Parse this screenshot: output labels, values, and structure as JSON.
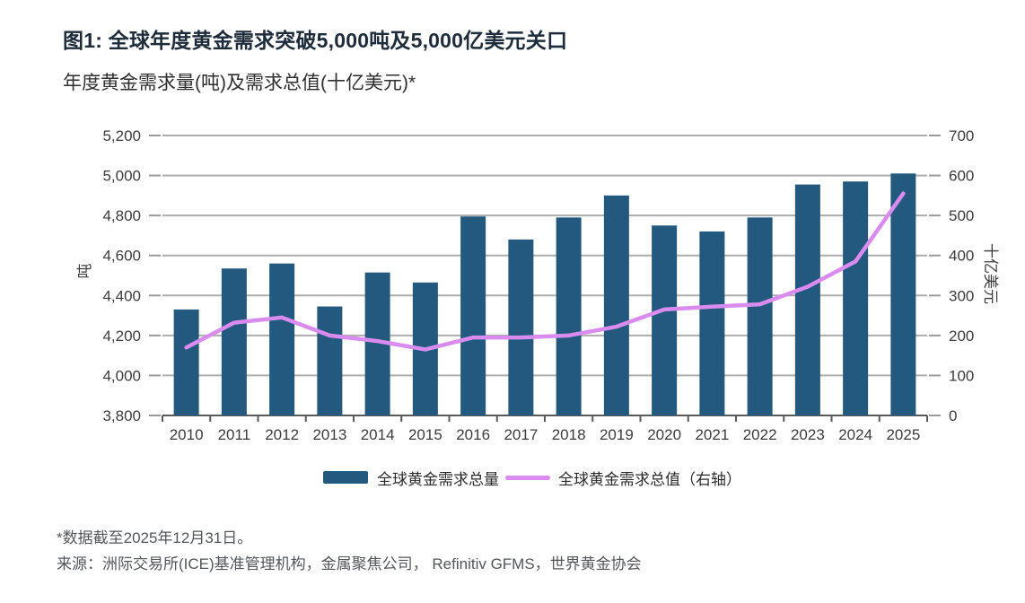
{
  "header": {
    "title": "图1: 全球年度黄金需求突破5,000吨及5,000亿美元关口",
    "subtitle": "年度黄金需求量(吨)及需求总值(十亿美元)*"
  },
  "footer": {
    "footnote": "*数据截至2025年12月31日。",
    "source": "来源：洲际交易所(ICE)基准管理机构，金属聚焦公司， Refinitiv GFMS，世界黄金协会"
  },
  "colors": {
    "bar": "#23597E",
    "line": "#D98BF0",
    "grid": "#ADADAD",
    "axis": "#5a5a5a",
    "side_tick": "#9a9a9a",
    "tick_text": "#3c3c3c",
    "title_text": "#1d2b3a"
  },
  "chart_data": {
    "type": "bar",
    "subtype": "bar+line combo, dual axis",
    "title": "图1: 全球年度黄金需求突破5,000吨及5,000亿美元关口",
    "subtitle": "年度黄金需求量(吨)及需求总值(十亿美元)*",
    "categories": [
      "2010",
      "2011",
      "2012",
      "2013",
      "2014",
      "2015",
      "2016",
      "2017",
      "2018",
      "2019",
      "2020",
      "2021",
      "2022",
      "2023",
      "2024",
      "2025"
    ],
    "series": [
      {
        "name": "全球黄金需求总量",
        "type": "bar",
        "axis": "left",
        "unit": "吨",
        "color": "#23597E",
        "values": [
          4330,
          4535,
          4560,
          4345,
          4515,
          4465,
          4795,
          4680,
          4790,
          4900,
          4750,
          4720,
          4790,
          4955,
          4970,
          5010
        ]
      },
      {
        "name": "全球黄金需求总值（右轴）",
        "type": "line",
        "axis": "right",
        "unit": "十亿美元",
        "color": "#D98BF0",
        "values": [
          170,
          232,
          245,
          200,
          186,
          165,
          195,
          195,
          200,
          222,
          265,
          272,
          278,
          322,
          385,
          555
        ]
      }
    ],
    "left_axis": {
      "title": "吨",
      "min": 3800,
      "max": 5200,
      "step": 200,
      "tick_labels": [
        "3,800",
        "4,000",
        "4,200",
        "4,400",
        "4,600",
        "4,800",
        "5,000",
        "5,200"
      ]
    },
    "right_axis": {
      "title": "十亿美元",
      "min": 0,
      "max": 700,
      "step": 100,
      "tick_labels": [
        "0",
        "100",
        "200",
        "300",
        "400",
        "500",
        "600",
        "700"
      ]
    },
    "grid": true,
    "legend_position": "bottom"
  }
}
